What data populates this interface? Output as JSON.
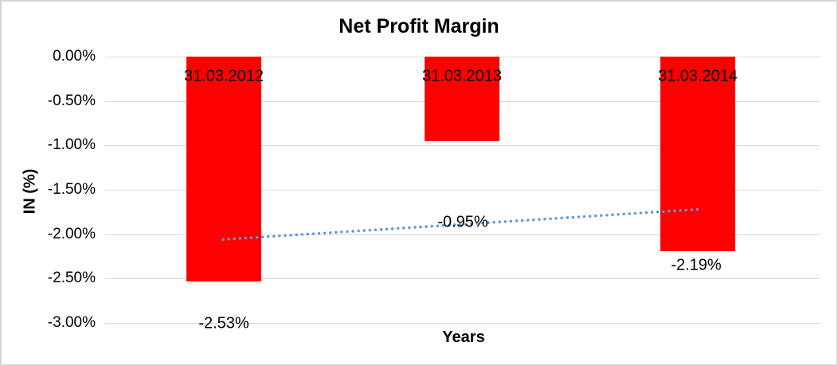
{
  "chart_data": {
    "type": "bar",
    "title": "Net Profit Margin",
    "xlabel": "Years",
    "ylabel": "IN (%)",
    "categories": [
      "31.03.2012",
      "31.03.2013",
      "31.03.2014"
    ],
    "values": [
      -2.53,
      -0.95,
      -2.19
    ],
    "data_labels": [
      "-2.53%",
      "-0.95%",
      "-2.19%"
    ],
    "y_ticks": [
      0,
      -0.5,
      -1,
      -1.5,
      -2,
      -2.5,
      -3
    ],
    "y_tick_labels": [
      "0.00%",
      "-0.50%",
      "-1.00%",
      "-1.50%",
      "-2.00%",
      "-2.50%",
      "-3.00%"
    ],
    "ylim": [
      -3,
      0
    ],
    "grid": true,
    "legend": "none",
    "bar_color": "#ff0000",
    "trendline": {
      "type": "linear",
      "style": "dotted",
      "color": "#5b9bd5",
      "start_value": -2.06,
      "end_value": -1.72
    }
  }
}
